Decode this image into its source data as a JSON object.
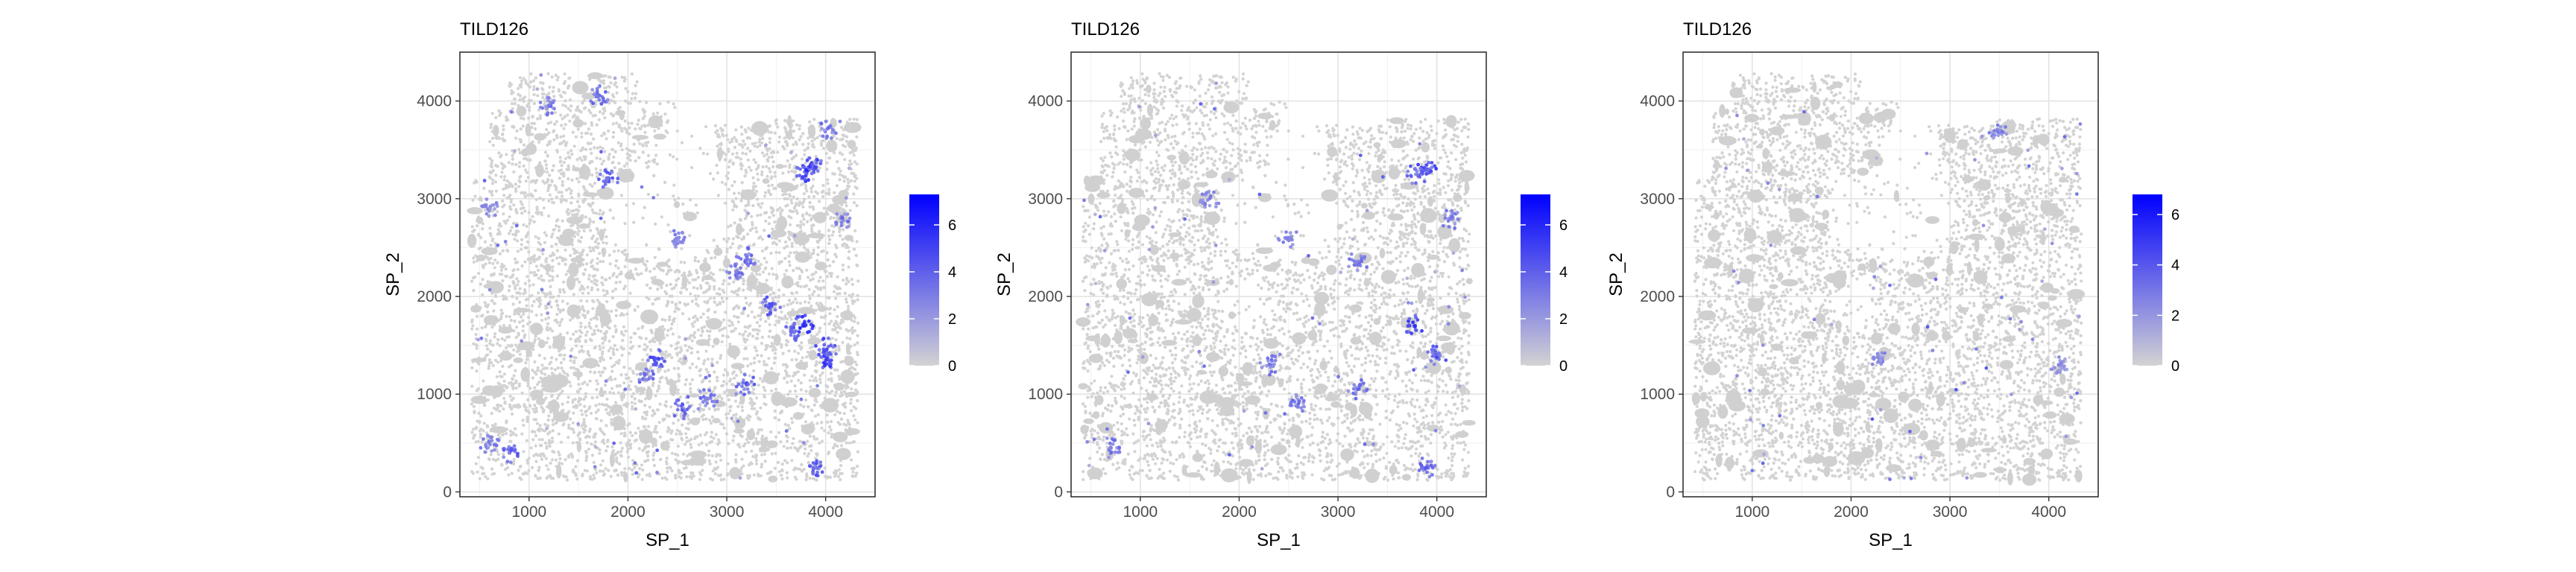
{
  "chart_data": [
    {
      "type": "scatter",
      "title": "TILD126",
      "xlabel": "SP_1",
      "ylabel": "SP_2",
      "xlim": [
        300,
        4500
      ],
      "ylim": [
        -50,
        4500
      ],
      "x_ticks": [
        1000,
        2000,
        3000,
        4000
      ],
      "y_ticks": [
        0,
        1000,
        2000,
        3000,
        4000
      ],
      "grid": true,
      "color_scale": {
        "low": "#d3d3d3",
        "high": "#0000ff",
        "min": 0,
        "max": 7.3,
        "ticks": [
          0,
          2,
          4,
          6
        ]
      },
      "legend_position": "right",
      "hotspots": [
        {
          "x": 3780,
          "y": 3280,
          "value": 6.5
        },
        {
          "x": 3880,
          "y": 3330,
          "value": 6
        },
        {
          "x": 4020,
          "y": 3700,
          "value": 4
        },
        {
          "x": 4170,
          "y": 2800,
          "value": 4
        },
        {
          "x": 3780,
          "y": 1710,
          "value": 7
        },
        {
          "x": 3660,
          "y": 1640,
          "value": 5
        },
        {
          "x": 4020,
          "y": 1360,
          "value": 6.5
        },
        {
          "x": 4000,
          "y": 1470,
          "value": 5.5
        },
        {
          "x": 3200,
          "y": 2400,
          "value": 4.5
        },
        {
          "x": 3100,
          "y": 2250,
          "value": 4
        },
        {
          "x": 3450,
          "y": 1900,
          "value": 5
        },
        {
          "x": 2300,
          "y": 1350,
          "value": 5.5
        },
        {
          "x": 2170,
          "y": 1200,
          "value": 4.5
        },
        {
          "x": 3200,
          "y": 1100,
          "value": 5
        },
        {
          "x": 2800,
          "y": 950,
          "value": 4
        },
        {
          "x": 2550,
          "y": 850,
          "value": 4.5
        },
        {
          "x": 3900,
          "y": 250,
          "value": 5
        },
        {
          "x": 2500,
          "y": 2600,
          "value": 4
        },
        {
          "x": 1800,
          "y": 3200,
          "value": 5
        },
        {
          "x": 1700,
          "y": 4050,
          "value": 4.5
        },
        {
          "x": 800,
          "y": 400,
          "value": 5
        },
        {
          "x": 600,
          "y": 500,
          "value": 4
        },
        {
          "x": 600,
          "y": 2900,
          "value": 3.5
        },
        {
          "x": 1200,
          "y": 3950,
          "value": 4
        }
      ]
    },
    {
      "type": "scatter",
      "title": "TILD126",
      "xlabel": "SP_1",
      "ylabel": "SP_2",
      "xlim": [
        300,
        4500
      ],
      "ylim": [
        -50,
        4500
      ],
      "x_ticks": [
        1000,
        2000,
        3000,
        4000
      ],
      "y_ticks": [
        0,
        1000,
        2000,
        3000,
        4000
      ],
      "grid": true,
      "color_scale": {
        "low": "#d3d3d3",
        "high": "#0000ff",
        "min": 0,
        "max": 7.3,
        "ticks": [
          0,
          2,
          4,
          6
        ]
      },
      "legend_position": "right",
      "hotspots": [
        {
          "x": 3900,
          "y": 3300,
          "value": 6
        },
        {
          "x": 3800,
          "y": 3250,
          "value": 5
        },
        {
          "x": 3780,
          "y": 1700,
          "value": 6.5
        },
        {
          "x": 4000,
          "y": 1400,
          "value": 5.5
        },
        {
          "x": 3200,
          "y": 2350,
          "value": 4
        },
        {
          "x": 2300,
          "y": 1300,
          "value": 4.5
        },
        {
          "x": 3200,
          "y": 1050,
          "value": 4.5
        },
        {
          "x": 2600,
          "y": 900,
          "value": 4
        },
        {
          "x": 3900,
          "y": 250,
          "value": 4.5
        },
        {
          "x": 4150,
          "y": 2800,
          "value": 4
        },
        {
          "x": 1700,
          "y": 3000,
          "value": 3.5
        },
        {
          "x": 700,
          "y": 450,
          "value": 4
        },
        {
          "x": 2500,
          "y": 2600,
          "value": 3.5
        }
      ]
    },
    {
      "type": "scatter",
      "title": "TILD126",
      "xlabel": "SP_1",
      "ylabel": "SP_2",
      "xlim": [
        300,
        4500
      ],
      "ylim": [
        -50,
        4500
      ],
      "x_ticks": [
        1000,
        2000,
        3000,
        4000
      ],
      "y_ticks": [
        0,
        1000,
        2000,
        3000,
        4000
      ],
      "grid": true,
      "color_scale": {
        "low": "#d3d3d3",
        "high": "#0000ff",
        "min": 0,
        "max": 6.8,
        "ticks": [
          0,
          2,
          4,
          6
        ]
      },
      "legend_position": "right",
      "hotspots": [
        {
          "x": 3500,
          "y": 3700,
          "value": 3.5
        },
        {
          "x": 4100,
          "y": 1300,
          "value": 3
        },
        {
          "x": 2300,
          "y": 1350,
          "value": 3
        }
      ]
    }
  ]
}
